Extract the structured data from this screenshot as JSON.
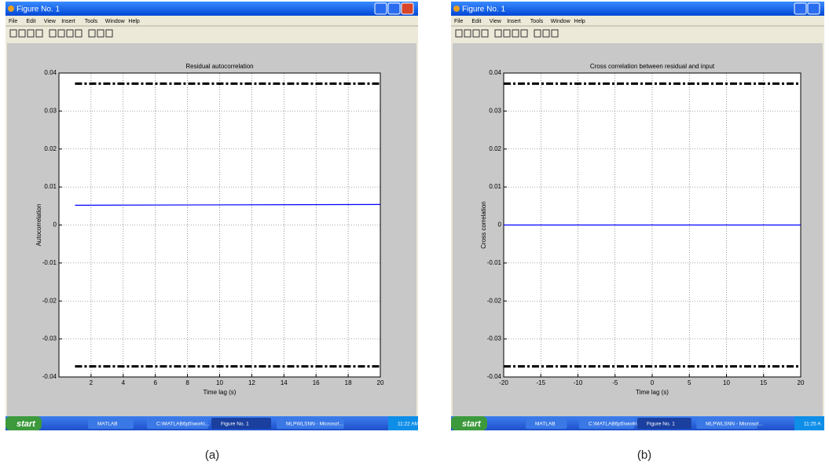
{
  "windows": [
    {
      "title": "Figure No. 1",
      "menu": [
        "File",
        "Edit",
        "View",
        "Insert",
        "Tools",
        "Window",
        "Help"
      ],
      "taskbar": {
        "start": "start",
        "items": [
          "MATLAB",
          "C:\\MATLAB6p5\\work\\...",
          "Figure No. 1",
          "MLPWLSNN - Microsof..."
        ],
        "clock": "11:22 AM"
      },
      "caption": "(a)"
    },
    {
      "title": "Figure No. 1",
      "menu": [
        "File",
        "Edit",
        "View",
        "Insert",
        "Tools",
        "Window",
        "Help"
      ],
      "taskbar": {
        "start": "start",
        "items": [
          "MATLAB",
          "C:\\MATLAB6p5\\work\\...",
          "Figure No. 1",
          "MLPWLSNN - Microsof..."
        ],
        "clock": "11:25 A"
      },
      "caption": "(b)"
    }
  ],
  "chart_data": [
    {
      "type": "line",
      "title": "Residual autocorrelation",
      "x_label": "Time lag (s)",
      "y_label": "Autocorrelation",
      "x": [
        1,
        20
      ],
      "series": [
        {
          "color": "#0000ff",
          "style": "solid",
          "values": [
            0.0052,
            0.0054
          ]
        },
        {
          "color": "#000000",
          "style": "dash-dot",
          "values": [
            0.0372,
            0.0372
          ]
        },
        {
          "color": "#000000",
          "style": "dash-dot",
          "values": [
            -0.0372,
            -0.0372
          ]
        }
      ],
      "xlim": [
        0,
        20
      ],
      "xticks": [
        2,
        4,
        6,
        8,
        10,
        12,
        14,
        16,
        18,
        20
      ],
      "ylim": [
        -0.04,
        0.04
      ],
      "yticks": [
        -0.04,
        -0.03,
        -0.02,
        -0.01,
        0,
        0.01,
        0.02,
        0.03,
        0.04
      ],
      "grid": true
    },
    {
      "type": "line",
      "title": "Cross correlation between residual and input",
      "x_label": "Time lag (s)",
      "y_label": "Cross correlation",
      "x": [
        -20,
        20
      ],
      "series": [
        {
          "color": "#0000ff",
          "style": "solid",
          "values": [
            0,
            0
          ]
        },
        {
          "color": "#000000",
          "style": "dash-dot",
          "values": [
            0.0372,
            0.0372
          ]
        },
        {
          "color": "#000000",
          "style": "dash-dot",
          "values": [
            -0.0372,
            -0.0372
          ]
        }
      ],
      "xlim": [
        -20,
        20
      ],
      "xticks": [
        -20,
        -15,
        -10,
        -5,
        0,
        5,
        10,
        15,
        20
      ],
      "ylim": [
        -0.04,
        0.04
      ],
      "yticks": [
        -0.04,
        -0.03,
        -0.02,
        -0.01,
        0,
        0.01,
        0.02,
        0.03,
        0.04
      ],
      "grid": true
    }
  ]
}
